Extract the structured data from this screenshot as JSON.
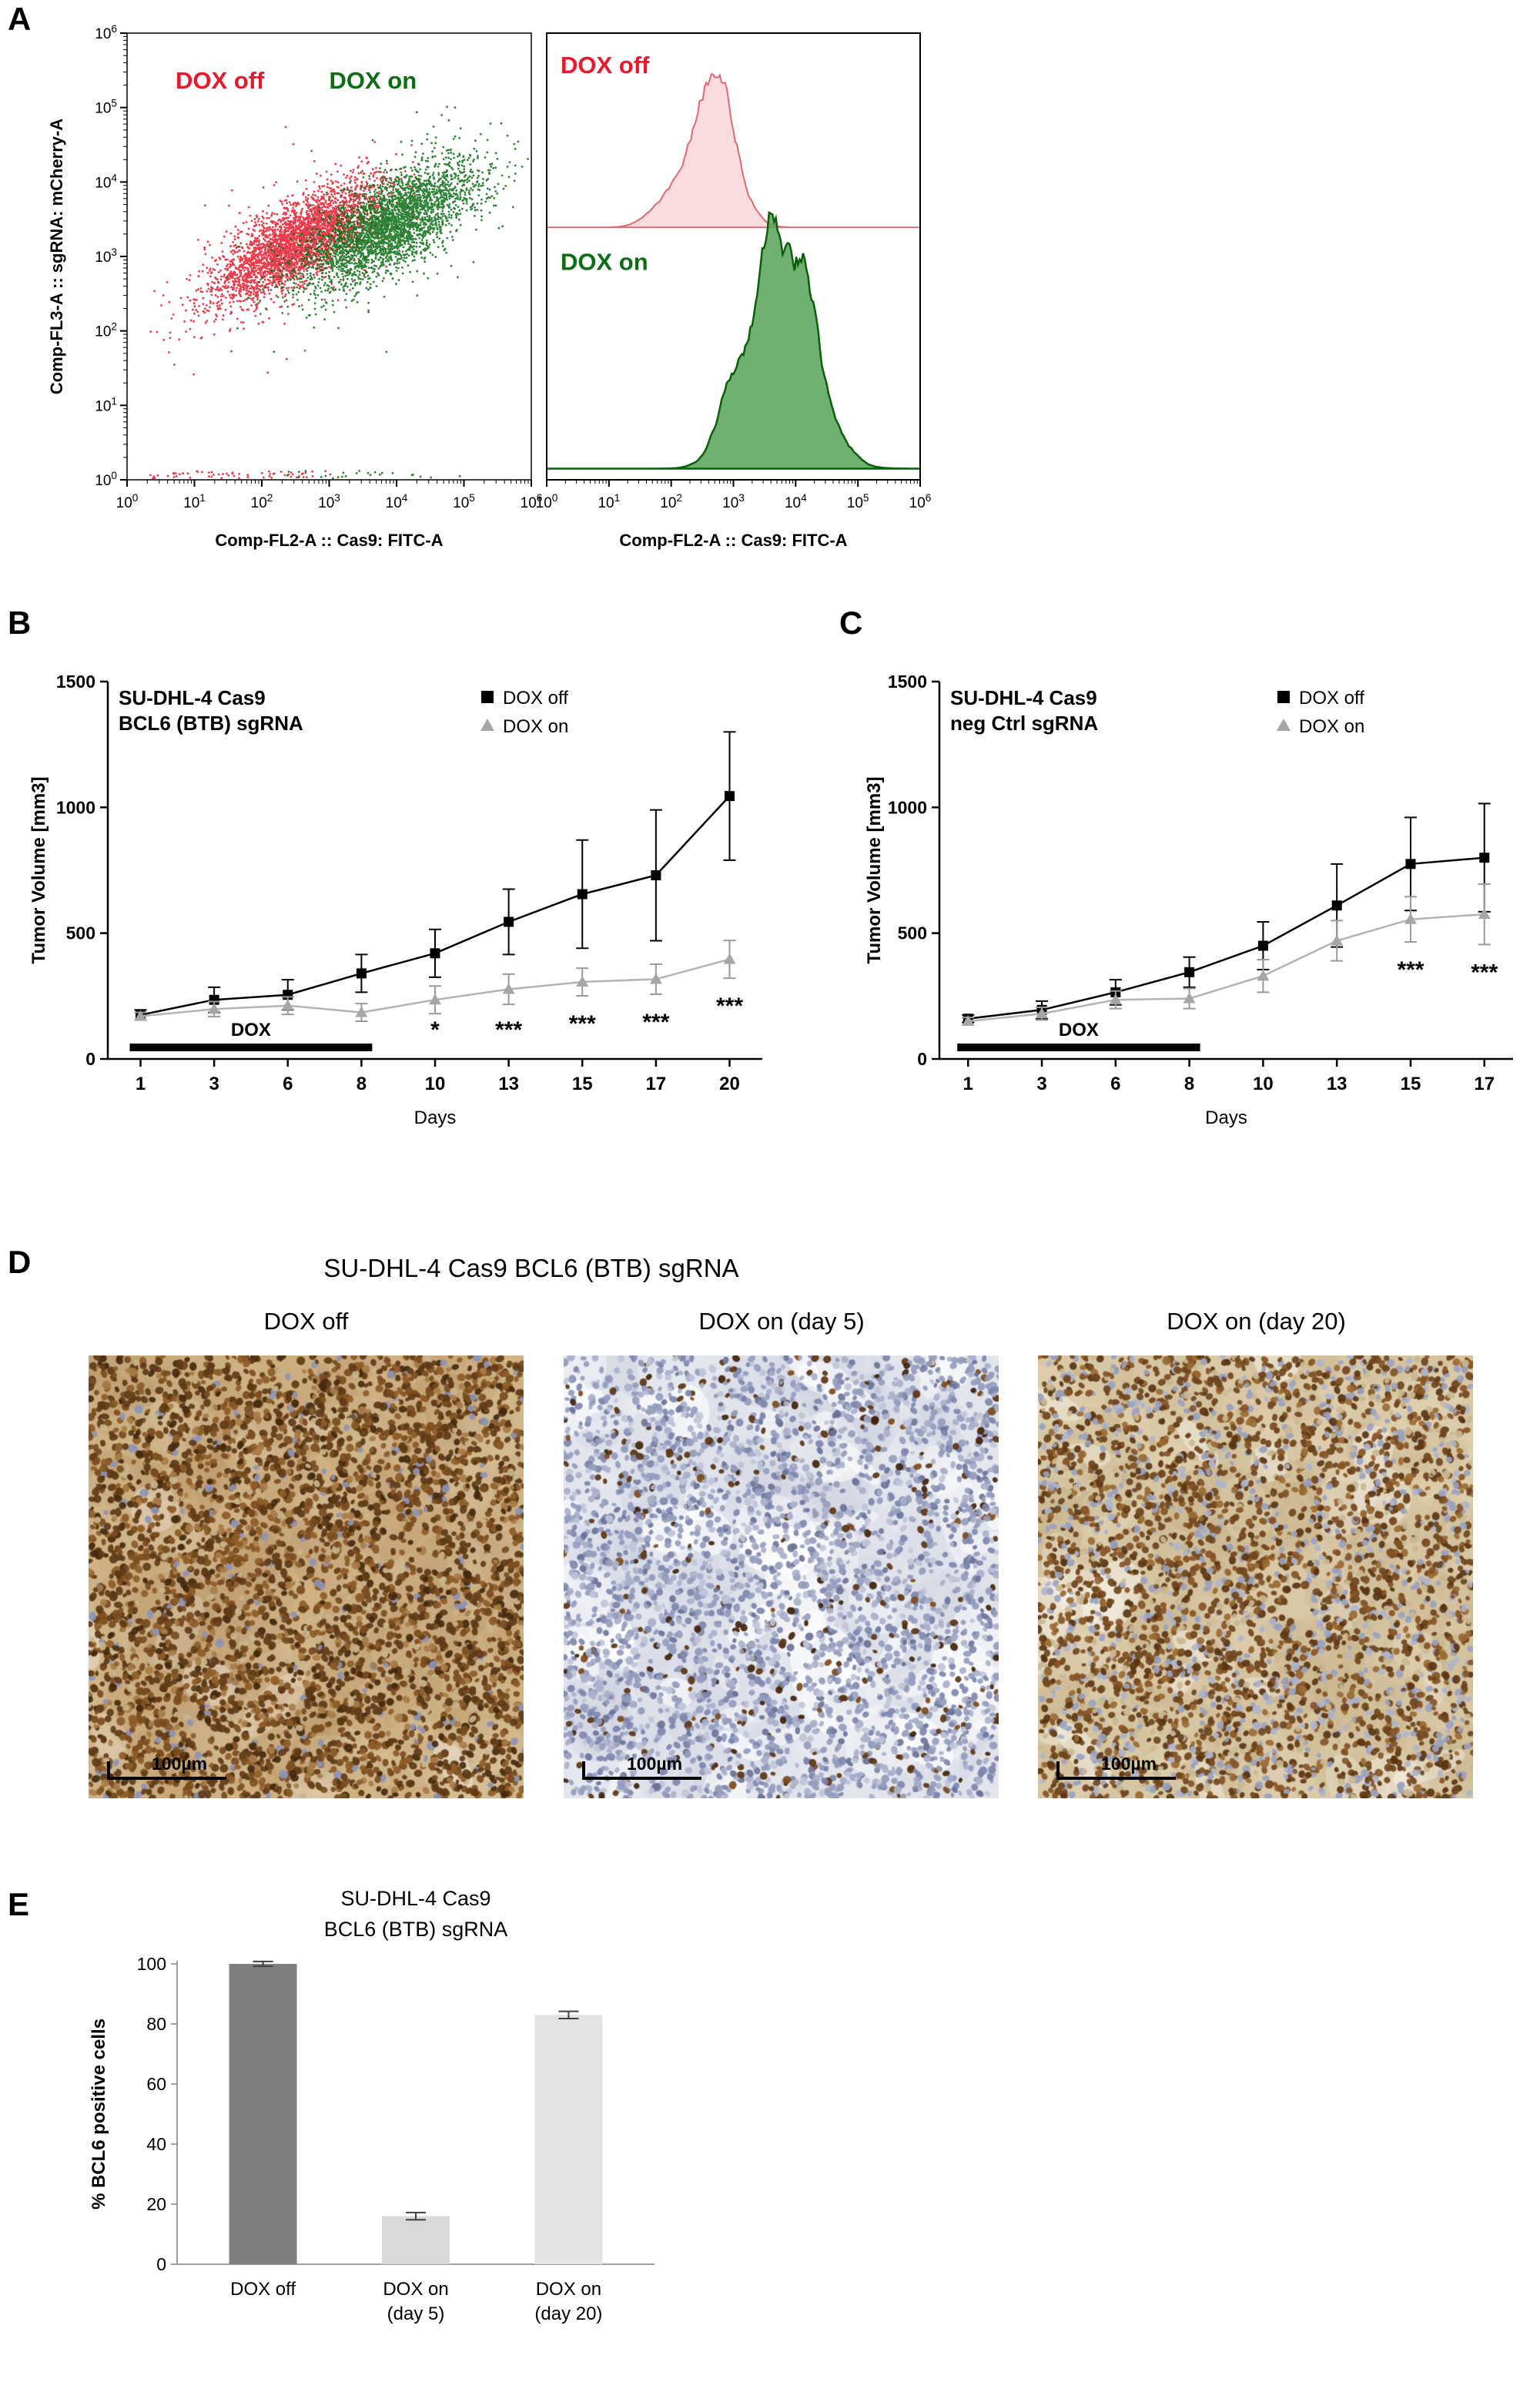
{
  "panel_labels": {
    "A": "A",
    "B": "B",
    "C": "C",
    "D": "D",
    "E": "E"
  },
  "chart_data": [
    {
      "id": "flow-scatter",
      "type": "scatter",
      "xlabel": "Comp-FL2-A :: Cas9: FITC-A",
      "ylabel": "Comp-FL3-A :: sgRNA: mCherry-A",
      "x_scale": "log10",
      "y_scale": "log10",
      "x_tick_exponents": [
        0,
        1,
        2,
        3,
        4,
        5,
        6
      ],
      "y_tick_exponents": [
        0,
        1,
        2,
        3,
        4,
        5,
        6
      ],
      "annotations": [
        {
          "text": "DOX off",
          "color": "#e8192c"
        },
        {
          "text": "DOX on",
          "color": "#0b6e14"
        }
      ],
      "series": [
        {
          "name": "DOX off",
          "color": "#e8192c",
          "n": 3200,
          "center_log": [
            2.5,
            3.18
          ],
          "spread": [
            0.6,
            0.26
          ],
          "slope": 0.52
        },
        {
          "name": "DOX on",
          "color": "#0b6e14",
          "n": 3200,
          "center_log": [
            3.9,
            3.42
          ],
          "spread": [
            0.62,
            0.3
          ],
          "slope": 0.48
        }
      ]
    },
    {
      "id": "flow-histogram",
      "type": "histogram",
      "xlabel": "Comp-FL2-A :: Cas9: FITC-A",
      "x_scale": "log10",
      "x_tick_exponents": [
        0,
        1,
        2,
        3,
        4,
        5,
        6
      ],
      "series": [
        {
          "name": "DOX off",
          "label_color": "#e8192c",
          "color_stroke": "#e06a6e",
          "color_fill": "#f7c5c9",
          "peak_log": 2.68,
          "sd": 0.33,
          "baseline_frac": 0.435,
          "height_frac": 0.36
        },
        {
          "name": "DOX on",
          "label_color": "#0b6e14",
          "color_stroke": "#0a5f0a",
          "color_fill": "#57a257",
          "peak_log": 3.8,
          "sd": 0.48,
          "baseline_frac": 0.975,
          "height_frac": 0.57
        }
      ]
    },
    {
      "id": "tumor-volume-bcl6",
      "type": "line",
      "title_lines": [
        "SU-DHL-4 Cas9",
        "BCL6 (BTB) sgRNA"
      ],
      "xlabel": "Days",
      "ylabel": "Tumor Volume [mm3]",
      "ylim": [
        0,
        1500
      ],
      "yticks": [
        0,
        500,
        1000,
        1500
      ],
      "categories": [
        1,
        3,
        6,
        8,
        10,
        13,
        15,
        17,
        20
      ],
      "series": [
        {
          "name": "DOX off",
          "marker": "square",
          "color": "#000000",
          "values": [
            175,
            235,
            255,
            340,
            420,
            545,
            655,
            730,
            1045
          ],
          "errors": [
            20,
            50,
            60,
            75,
            95,
            130,
            215,
            260,
            255
          ]
        },
        {
          "name": "DOX on",
          "marker": "triangle",
          "color": "#a6a6a6",
          "line_color": "#b3b3b3",
          "values": [
            170,
            198,
            212,
            185,
            235,
            277,
            306,
            317,
            396
          ],
          "errors": [
            15,
            30,
            35,
            35,
            55,
            60,
            55,
            60,
            75
          ]
        }
      ],
      "significance": [
        {
          "category": 10,
          "text": "*"
        },
        {
          "category": 13,
          "text": "***"
        },
        {
          "category": 15,
          "text": "***"
        },
        {
          "category": 17,
          "text": "***"
        },
        {
          "category": 20,
          "text": "***"
        }
      ],
      "dox_bar": {
        "from_category": 1,
        "to_category": 8,
        "label": "DOX"
      }
    },
    {
      "id": "tumor-volume-ctrl",
      "type": "line",
      "title_lines": [
        "SU-DHL-4 Cas9",
        "neg Ctrl sgRNA"
      ],
      "xlabel": "Days",
      "ylabel": "Tumor Volume [mm3]",
      "ylim": [
        0,
        1500
      ],
      "yticks": [
        0,
        500,
        1000,
        1500
      ],
      "categories": [
        1,
        3,
        6,
        8,
        10,
        13,
        15,
        17
      ],
      "series": [
        {
          "name": "DOX off",
          "marker": "square",
          "color": "#000000",
          "values": [
            160,
            195,
            265,
            345,
            450,
            610,
            775,
            800
          ],
          "errors": [
            15,
            35,
            50,
            60,
            95,
            165,
            185,
            215
          ]
        },
        {
          "name": "DOX on",
          "marker": "triangle",
          "color": "#a6a6a6",
          "line_color": "#b3b3b3",
          "values": [
            150,
            180,
            235,
            240,
            330,
            470,
            555,
            575
          ],
          "errors": [
            15,
            25,
            35,
            40,
            65,
            80,
            90,
            120
          ]
        }
      ],
      "significance": [
        {
          "category": 15,
          "text": "***"
        },
        {
          "category": 17,
          "text": "***"
        }
      ],
      "dox_bar": {
        "from_category": 1,
        "to_category": 8,
        "label": "DOX"
      }
    },
    {
      "id": "bcl6-positive-cells",
      "type": "bar",
      "title_lines": [
        "SU-DHL-4 Cas9",
        "BCL6 (BTB) sgRNA"
      ],
      "ylabel": "% BCL6 positive cells",
      "ylim": [
        0,
        100
      ],
      "yticks": [
        0,
        20,
        40,
        60,
        80,
        100
      ],
      "categories": [
        [
          "DOX off"
        ],
        [
          "DOX on",
          "(day 5)"
        ],
        [
          "DOX on",
          "(day 20)"
        ]
      ],
      "values": [
        100,
        16,
        83
      ],
      "errors": [
        0.8,
        1.2,
        1.2
      ],
      "bar_colors": [
        "#7f7f7f",
        "#d9d9d9",
        "#e3e3e3"
      ]
    }
  ],
  "panel_d": {
    "title": "SU-DHL-4 Cas9 BCL6 (BTB) sgRNA",
    "images": [
      {
        "label": "DOX off",
        "scale_label": "100µm",
        "tint": "dense brown BCL6-positive nuclei"
      },
      {
        "label": "DOX on (day 5)",
        "scale_label": "100µm",
        "tint": "mostly blue nuclei with scattered brown"
      },
      {
        "label": "DOX on (day 20)",
        "scale_label": "100µm",
        "tint": "mixed brown and blue nuclei"
      }
    ]
  }
}
